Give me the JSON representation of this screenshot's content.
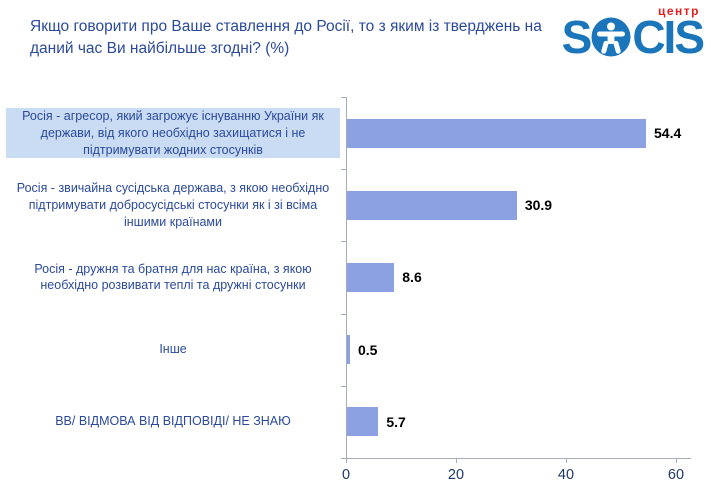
{
  "header": {
    "title": "Якщо говорити про Ваше ставлення до Росії, то з яким із тверджень на даний час Ви найбільше згодні? (%)",
    "logo": {
      "prefix": "S",
      "suffix": "CIS",
      "tagline": "центр",
      "brand_blue": "#1B75BB",
      "tagline_red": "#E01F1F"
    }
  },
  "chart_data": {
    "type": "bar",
    "orientation": "horizontal",
    "title": "Якщо говорити про Ваше ставлення до Росії, то з яким із тверджень на даний час Ви найбільше згодні? (%)",
    "categories": [
      "Росія - агресор, який загрожує існуванню України як держави, від якого необхідно захищатися і не підтримувати жодних стосунків",
      "Росія - звичайна сусідська держава, з якою необхідно підтримувати добросусідські стосунки як і зі всіма іншими країнами",
      "Росія - дружня та братня для нас країна, з якою необхідно розвивати теплі та дружні стосунки",
      "Інше",
      "ВВ/ ВІДМОВА ВІД ВІДПОВІДІ/ НЕ ЗНАЮ"
    ],
    "values": [
      54.4,
      30.9,
      8.6,
      0.5,
      5.7
    ],
    "value_labels": [
      "54.4",
      "30.9",
      "8.6",
      "0.5",
      "5.7"
    ],
    "highlighted_category_index": 0,
    "highlight_color": "#C9DCF4",
    "bar_color": "#8CA1E1",
    "label_color": "#2B4A9B",
    "value_label_color": "#000000",
    "axis_color": "#A6ACB8",
    "tick_label_color": "#1F3864",
    "x_ticks": [
      0,
      20,
      40,
      60
    ],
    "x_tick_labels": [
      "0",
      "20",
      "40",
      "60"
    ],
    "xlim": [
      0,
      62.4
    ],
    "grid": false,
    "legend": false
  }
}
